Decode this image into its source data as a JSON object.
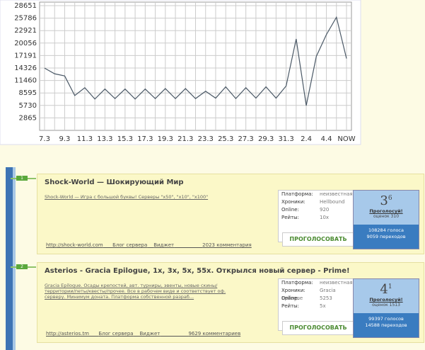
{
  "chart_data": {
    "type": "line",
    "categories": [
      "7.3",
      null,
      "9.3",
      null,
      "11.3",
      null,
      "13.3",
      null,
      "15.3",
      null,
      "17.3",
      null,
      "19.3",
      null,
      "21.3",
      null,
      "23.3",
      null,
      "25.3",
      null,
      "27.3",
      null,
      "29.3",
      null,
      "31.3",
      null,
      "2.4",
      null,
      "4.4",
      null,
      "NOW"
    ],
    "values": [
      14300,
      13000,
      12500,
      8000,
      9800,
      7200,
      9500,
      7300,
      9500,
      7200,
      9500,
      7300,
      9600,
      7300,
      9600,
      7300,
      9000,
      7400,
      10000,
      7300,
      9800,
      7400,
      10000,
      7400,
      10200,
      21000,
      5700,
      17000,
      22000,
      26000,
      16500
    ],
    "color": "#4a5866",
    "ylim": [
      0,
      28651
    ],
    "yticks": [
      2865,
      5730,
      8595,
      11460,
      14326,
      17191,
      20056,
      22921,
      25786,
      28651
    ],
    "grid": true
  },
  "listings": [
    {
      "rank": "1",
      "title": "Shock-World — Шокирующий Мир",
      "description": "Shock-World — Игра с большой буквы! Серверы \"x50\", \"x10\", \"x100\"",
      "url": "http://shock-world.com",
      "blog": "Блог сервера",
      "widget": "Виджет",
      "comments": "2023 комментария",
      "fields": [
        {
          "label": "Платформа:",
          "value": "неизвестная"
        },
        {
          "label": "Хроники:",
          "value": "Hellbound"
        },
        {
          "label": "Online:",
          "value": "920"
        },
        {
          "label": "Рейты:",
          "value": "10x"
        }
      ],
      "vote_button": "ПРОГОЛОСОВАТЬ",
      "score": "3",
      "score_fraction": "6",
      "vote_link": "Проголосуй!",
      "ratings": "оценок 310",
      "votes": "108284 голоса",
      "visits": "9059 переходов"
    },
    {
      "rank": "2",
      "title": "Asterios - Gracia Epilogue, 1x, 3x, 5x, 55x. Открылся новый сервер - Prime!",
      "description": "Gracia Epilogue. Осады крепостей, авт. турниры, эвенты, новые скины/территории/петы/квесты/прочее. Все в рабочем виде и соответствует оф. серверу. Минимум доната. Платформа собственной разраб...",
      "url": "http://asterios.tm",
      "blog": "Блог сервера",
      "widget": "Виджет",
      "comments": "9629 комментариев",
      "fields": [
        {
          "label": "Платформа:",
          "value": "неизвестная"
        },
        {
          "label": "Хроники:",
          "value": "Gracia Epilogue"
        },
        {
          "label": "Online:",
          "value": "5253"
        },
        {
          "label": "Рейты:",
          "value": "5x"
        }
      ],
      "vote_button": "ПРОГОЛОСОВАТЬ",
      "score": "4",
      "score_fraction": "1",
      "vote_link": "Проголосуй!",
      "ratings": "оценок 1513",
      "votes": "99397 голосов",
      "visits": "14588 переходов"
    }
  ]
}
